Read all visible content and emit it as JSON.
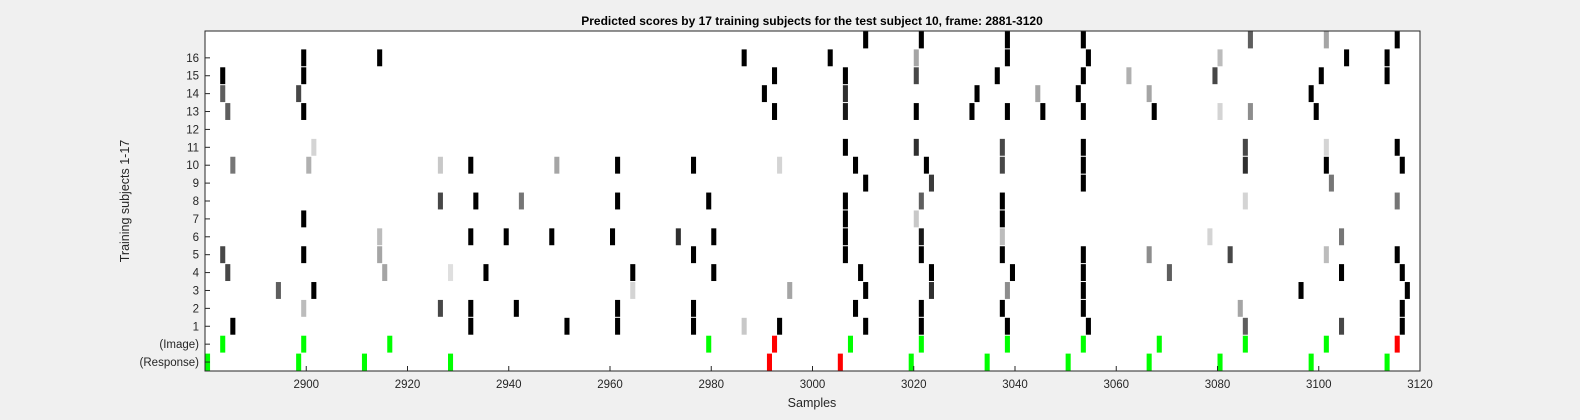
{
  "chart_data": {
    "type": "heatmap",
    "title": "Predicted scores by 17 training subjects for the test subject 10, frame: 2881-3120",
    "xlabel": "Samples",
    "ylabel": "Training subjects 1-17",
    "xlim": [
      2880,
      3120
    ],
    "x_ticks": [
      2900,
      2920,
      2940,
      2960,
      2980,
      3000,
      3020,
      3040,
      3060,
      3080,
      3100,
      3120
    ],
    "rows": [
      "(Response)",
      "(Image)",
      "1",
      "2",
      "3",
      "4",
      "5",
      "6",
      "7",
      "8",
      "9",
      "10",
      "11",
      "12",
      "13",
      "14",
      "15",
      "16",
      "17"
    ],
    "y_tick_labels": [
      "(Response)",
      "(Image)",
      "1",
      "2",
      "3",
      "4",
      "5",
      "6",
      "7",
      "8",
      "9",
      "10",
      "11",
      "12",
      "13",
      "14",
      "15",
      "16"
    ],
    "colors": {
      "background": "#f0f0f0",
      "plot": "#ffffff",
      "correct": "#00ff00",
      "incorrect": "#ff0000"
    },
    "marks": {
      "(Response)": [
        [
          2881,
          "g"
        ],
        [
          2899,
          "g"
        ],
        [
          2912,
          "g"
        ],
        [
          2929,
          "g"
        ],
        [
          2992,
          "r"
        ],
        [
          3006,
          "r"
        ],
        [
          3020,
          "g"
        ],
        [
          3035,
          "g"
        ],
        [
          3051,
          "g"
        ],
        [
          3067,
          "g"
        ],
        [
          3081,
          "g"
        ],
        [
          3099,
          "g"
        ],
        [
          3114,
          "g"
        ]
      ],
      "(Image)": [
        [
          2884,
          "g"
        ],
        [
          2900,
          "g"
        ],
        [
          2917,
          "g"
        ],
        [
          2980,
          "g"
        ],
        [
          2993,
          "r"
        ],
        [
          3008,
          "g"
        ],
        [
          3022,
          "g"
        ],
        [
          3039,
          "g"
        ],
        [
          3054,
          "g"
        ],
        [
          3069,
          "g"
        ],
        [
          3086,
          "g"
        ],
        [
          3102,
          "g"
        ],
        [
          3116,
          "r"
        ]
      ],
      "1": [
        [
          2886,
          0
        ],
        [
          2933,
          0
        ],
        [
          2952,
          0
        ],
        [
          2962,
          0
        ],
        [
          2977,
          0
        ],
        [
          2987,
          0.85
        ],
        [
          2994,
          0
        ],
        [
          3011,
          0
        ],
        [
          3022,
          0
        ],
        [
          3039,
          0
        ],
        [
          3055,
          0
        ],
        [
          3086,
          0.4
        ],
        [
          3105,
          0.3
        ],
        [
          3117,
          0
        ]
      ],
      "2": [
        [
          2900,
          0.8
        ],
        [
          2927,
          0.3
        ],
        [
          2933,
          0
        ],
        [
          2942,
          0
        ],
        [
          2962,
          0
        ],
        [
          2977,
          0
        ],
        [
          3009,
          0
        ],
        [
          3022,
          0
        ],
        [
          3038,
          0
        ],
        [
          3054,
          0
        ],
        [
          3085,
          0.7
        ],
        [
          3117,
          0
        ]
      ],
      "3": [
        [
          2895,
          0.4
        ],
        [
          2902,
          0
        ],
        [
          2965,
          0.9
        ],
        [
          2996,
          0.7
        ],
        [
          3011,
          0
        ],
        [
          3024,
          0.2
        ],
        [
          3039,
          0.6
        ],
        [
          3054,
          0
        ],
        [
          3097,
          0
        ],
        [
          3118,
          0
        ]
      ],
      "4": [
        [
          2885,
          0.3
        ],
        [
          2916,
          0.7
        ],
        [
          2929,
          0.95
        ],
        [
          2936,
          0
        ],
        [
          2965,
          0
        ],
        [
          2981,
          0
        ],
        [
          3010,
          0
        ],
        [
          3024,
          0
        ],
        [
          3040,
          0
        ],
        [
          3054,
          0
        ],
        [
          3071,
          0.4
        ],
        [
          3105,
          0
        ],
        [
          3117,
          0
        ]
      ],
      "5": [
        [
          2884,
          0.3
        ],
        [
          2900,
          0
        ],
        [
          2915,
          0.7
        ],
        [
          2977,
          0
        ],
        [
          3007,
          0
        ],
        [
          3022,
          0
        ],
        [
          3038,
          0
        ],
        [
          3054,
          0
        ],
        [
          3067,
          0.6
        ],
        [
          3083,
          0.3
        ],
        [
          3102,
          0.8
        ],
        [
          3116,
          0
        ]
      ],
      "6": [
        [
          2915,
          0.8
        ],
        [
          2933,
          0
        ],
        [
          2940,
          0
        ],
        [
          2949,
          0
        ],
        [
          2961,
          0
        ],
        [
          2974,
          0.2
        ],
        [
          2981,
          0
        ],
        [
          3007,
          0
        ],
        [
          3022,
          0.1
        ],
        [
          3038,
          0.8
        ],
        [
          3079,
          0.9
        ],
        [
          3105,
          0.5
        ]
      ],
      "7": [
        [
          2900,
          0
        ],
        [
          3007,
          0
        ],
        [
          3021,
          0.85
        ],
        [
          3038,
          0
        ]
      ],
      "8": [
        [
          2927,
          0.3
        ],
        [
          2934,
          0
        ],
        [
          2943,
          0.5
        ],
        [
          2962,
          0
        ],
        [
          2980,
          0
        ],
        [
          3007,
          0
        ],
        [
          3022,
          0.4
        ],
        [
          3038,
          0
        ],
        [
          3086,
          0.9
        ],
        [
          3116,
          0.5
        ]
      ],
      "9": [
        [
          3011,
          0
        ],
        [
          3024,
          0.25
        ],
        [
          3054,
          0
        ],
        [
          3103,
          0.5
        ]
      ],
      "10": [
        [
          2886,
          0.5
        ],
        [
          2901,
          0.75
        ],
        [
          2927,
          0.85
        ],
        [
          2933,
          0
        ],
        [
          2950,
          0.7
        ],
        [
          2962,
          0
        ],
        [
          2977,
          0
        ],
        [
          2994,
          0.9
        ],
        [
          3009,
          0
        ],
        [
          3023,
          0
        ],
        [
          3038,
          0.3
        ],
        [
          3054,
          0
        ],
        [
          3086,
          0.2
        ],
        [
          3102,
          0
        ],
        [
          3117,
          0
        ]
      ],
      "11": [
        [
          2902,
          0.9
        ],
        [
          3007,
          0
        ],
        [
          3021,
          0.2
        ],
        [
          3038,
          0.3
        ],
        [
          3054,
          0
        ],
        [
          3086,
          0.3
        ],
        [
          3102,
          0.9
        ],
        [
          3116,
          0
        ]
      ],
      "12": [],
      "13": [
        [
          2885,
          0.4
        ],
        [
          2900,
          0
        ],
        [
          2993,
          0
        ],
        [
          3007,
          0.1
        ],
        [
          3021,
          0
        ],
        [
          3032,
          0
        ],
        [
          3039,
          0
        ],
        [
          3046,
          0
        ],
        [
          3054,
          0
        ],
        [
          3068,
          0
        ],
        [
          3081,
          0.9
        ],
        [
          3087,
          0.6
        ],
        [
          3100,
          0
        ]
      ],
      "14": [
        [
          2884,
          0.4
        ],
        [
          2899,
          0.3
        ],
        [
          2991,
          0
        ],
        [
          3007,
          0.2
        ],
        [
          3033,
          0
        ],
        [
          3045,
          0.7
        ],
        [
          3053,
          0
        ],
        [
          3067,
          0.7
        ],
        [
          3099,
          0
        ]
      ],
      "15": [
        [
          2884,
          0
        ],
        [
          2900,
          0
        ],
        [
          2993,
          0
        ],
        [
          3007,
          0
        ],
        [
          3021,
          0.3
        ],
        [
          3037,
          0
        ],
        [
          3054,
          0
        ],
        [
          3063,
          0.75
        ],
        [
          3080,
          0.3
        ],
        [
          3101,
          0
        ],
        [
          3114,
          0
        ]
      ],
      "16": [
        [
          2900,
          0
        ],
        [
          2915,
          0
        ],
        [
          2987,
          0
        ],
        [
          3004,
          0
        ],
        [
          3021,
          0.7
        ],
        [
          3039,
          0
        ],
        [
          3055,
          0
        ],
        [
          3081,
          0.8
        ],
        [
          3106,
          0
        ],
        [
          3114,
          0
        ]
      ],
      "17": [
        [
          3011,
          0
        ],
        [
          3022,
          0
        ],
        [
          3039,
          0
        ],
        [
          3054,
          0
        ],
        [
          3087,
          0.4
        ],
        [
          3102,
          0.7
        ],
        [
          3116,
          0
        ]
      ]
    }
  }
}
